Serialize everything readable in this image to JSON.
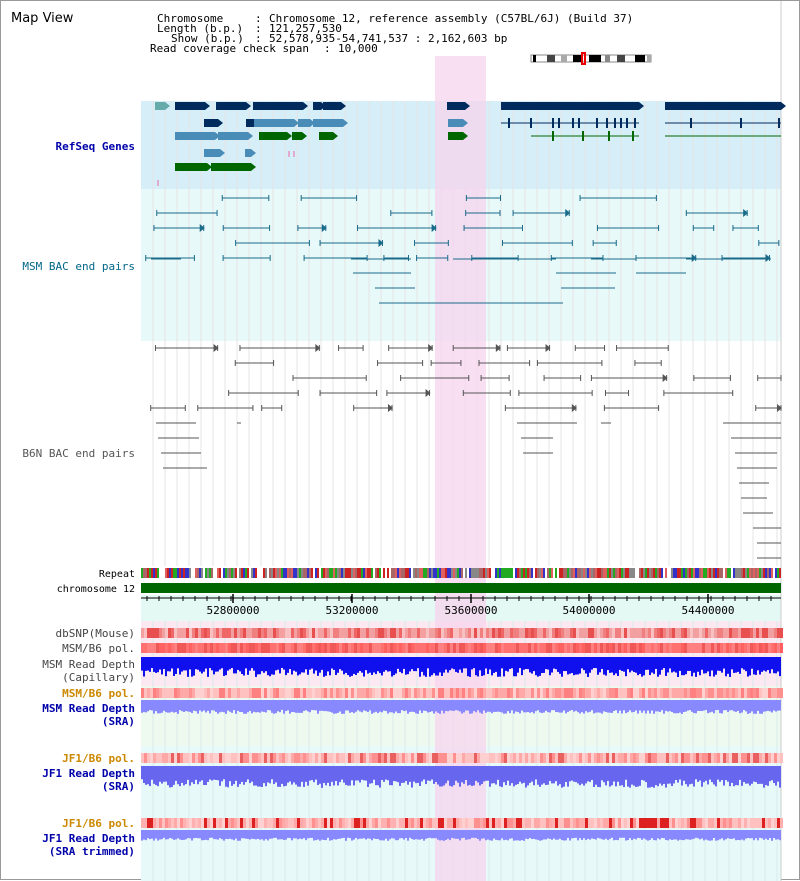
{
  "view_title": "Map View",
  "info": {
    "chromosome_label": "Chromosome",
    "chromosome_value": "Chromosome 12, reference assembly (C57BL/6J) (Build 37)",
    "length_label": "Length (b.p.)",
    "length_value": "121,257,530",
    "show_label": "Show (b.p.)",
    "show_value": "52,578,935-54,741,537 : 2,162,603 bp",
    "coverage_label": "Read coverage check span",
    "coverage_value": "10,000"
  },
  "tracks": {
    "refseq": "RefSeq Genes",
    "msm_bac": "MSM BAC end pairs",
    "b6n_bac": "B6N BAC end pairs",
    "repeat": "Repeat",
    "chromosome": "chromosome 12",
    "dbsnp": "dbSNP(Mouse)",
    "msm_b6_pol": "MSM/B6 pol.",
    "msm_depth_cap_1": "MSM Read Depth",
    "msm_depth_cap_2": "(Capillary)",
    "msm_b6_pol_2": "MSM/B6 pol.",
    "msm_depth_sra_1": "MSM Read Depth",
    "msm_depth_sra_2": "(SRA)",
    "jf1_b6_pol": "JF1/B6 pol.",
    "jf1_depth_sra_1": "JF1 Read Depth",
    "jf1_depth_sra_2": "(SRA)",
    "jf1_b6_pol_2": "JF1/B6 pol.",
    "jf1_depth_trim_1": "JF1 Read Depth",
    "jf1_depth_trim_2": "(SRA trimmed)"
  },
  "axis_ticks": [
    "52800000",
    "53200000",
    "53600000",
    "54000000",
    "54400000"
  ],
  "colors": {
    "refseq_label": "#0000aa",
    "msm_label": "#006688",
    "b6n_label": "#555555",
    "pol_orange": "#cc8800",
    "depth_blue": "#0000aa",
    "navy": "#002b5c",
    "gene_blue": "#4a8cb8",
    "gene_green": "#006600",
    "highlight": "#f8d8f0"
  }
}
